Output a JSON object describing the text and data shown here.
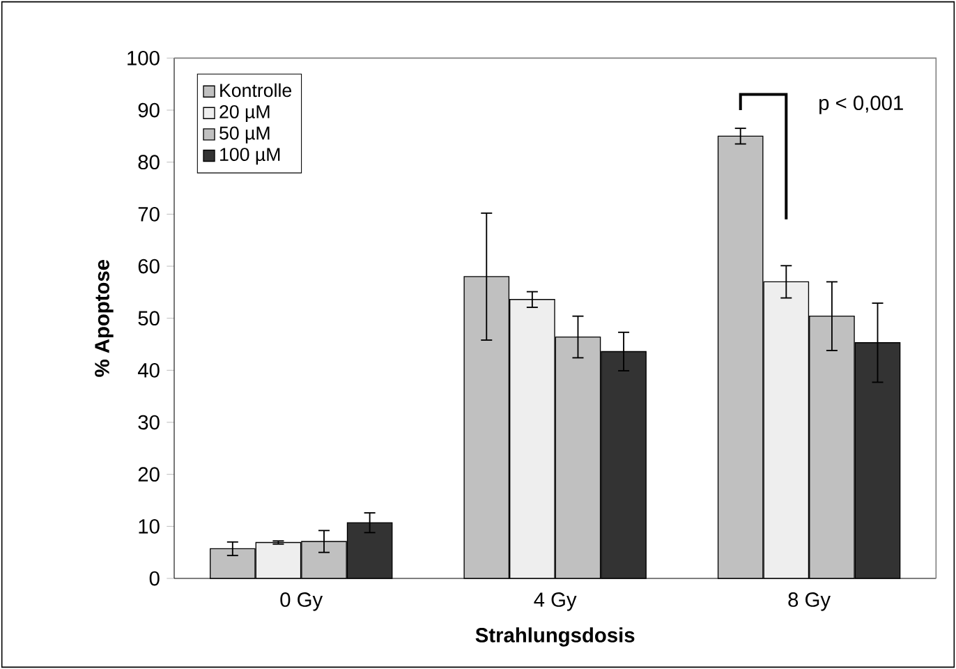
{
  "chart_data": {
    "type": "bar",
    "xlabel": "Strahlungsdosis",
    "ylabel": "% Apoptose",
    "categories": [
      "0 Gy",
      "4 Gy",
      "8 Gy"
    ],
    "series": [
      {
        "name": "Kontrolle",
        "color": "#c0c0c0",
        "values": [
          5.7,
          58,
          85
        ],
        "errors": [
          1.3,
          12.2,
          1.5
        ]
      },
      {
        "name": "20 µM",
        "color": "#eeeeee",
        "values": [
          6.9,
          53.6,
          57
        ],
        "errors": [
          0.3,
          1.5,
          3.1
        ]
      },
      {
        "name": "50 µM",
        "color": "#c0c0c0",
        "values": [
          7.1,
          46.4,
          50.4
        ],
        "errors": [
          2.1,
          4.0,
          6.6
        ]
      },
      {
        "name": "100 µM",
        "color": "#333333",
        "values": [
          10.7,
          43.6,
          45.3
        ],
        "errors": [
          1.9,
          3.7,
          7.6
        ]
      }
    ],
    "ylim": [
      0,
      100
    ],
    "yticks": [
      0,
      10,
      20,
      30,
      40,
      50,
      60,
      70,
      80,
      90,
      100
    ],
    "grid": false,
    "legend": "top left",
    "annotations": [
      "p < 0,001"
    ]
  }
}
